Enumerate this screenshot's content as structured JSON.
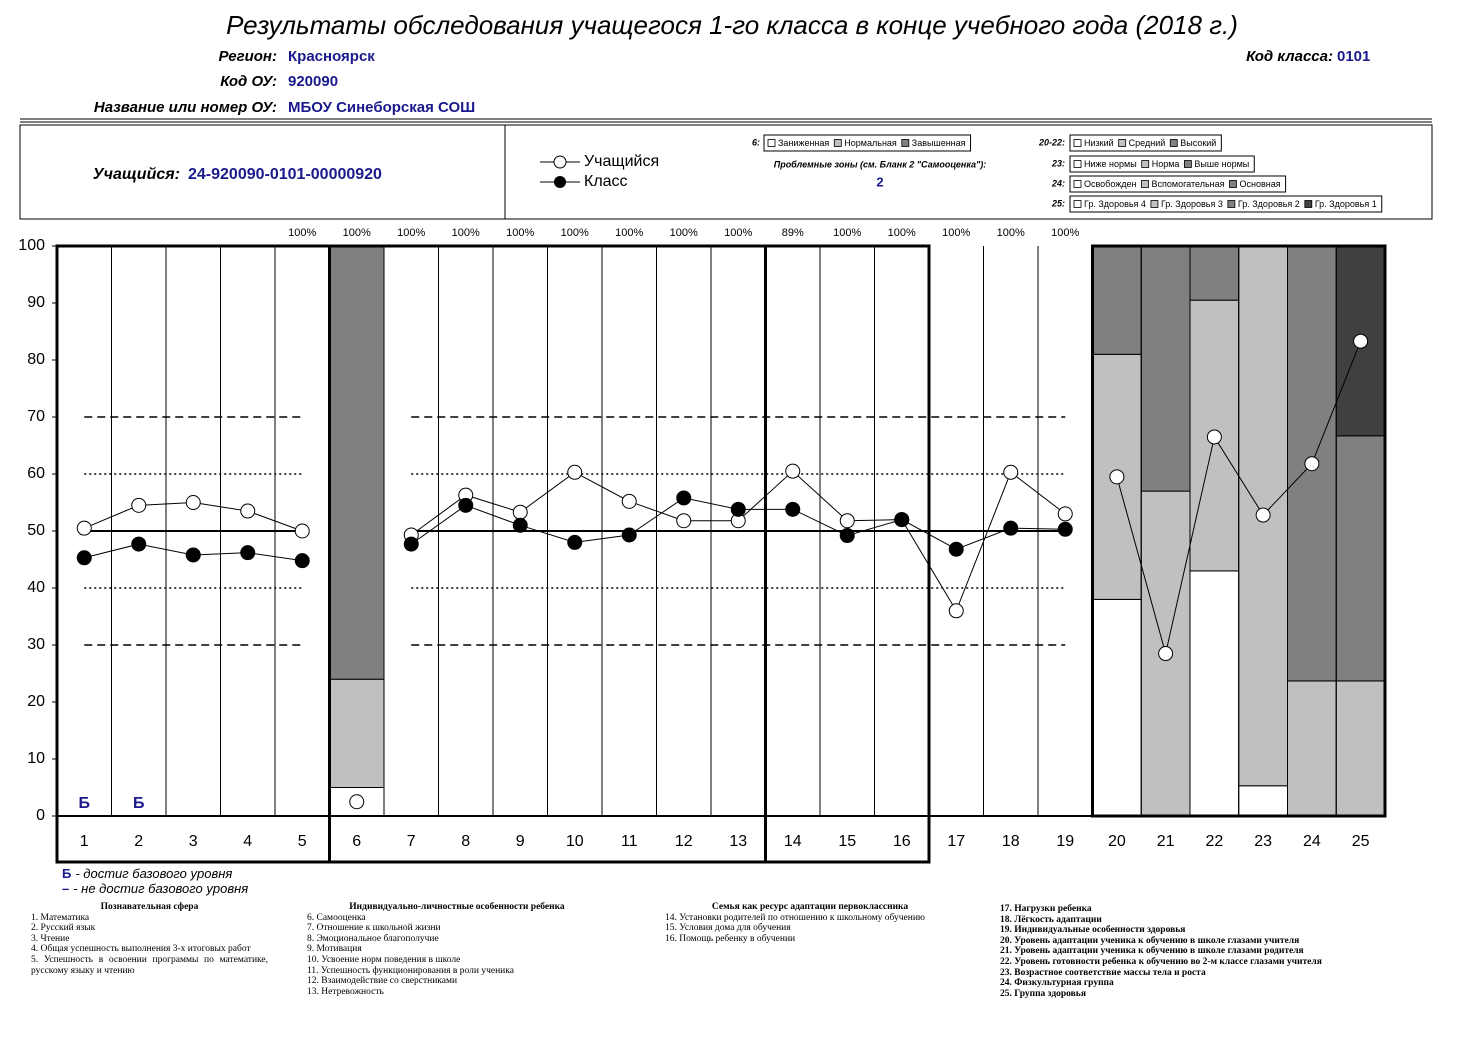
{
  "header": {
    "title": "Результаты обследования учащегося 1-го класса в конце учебного года (2018 г.)",
    "region_label": "Регион:",
    "region": "Красноярск",
    "school_code_label": "Код ОУ:",
    "school_code": "920090",
    "school_name_label": "Название или номер ОУ:",
    "school_name": "МБОУ Синеборская СОШ",
    "class_code_label": "Код класса:",
    "class_code": "0101"
  },
  "student": {
    "label": "Учащийся:",
    "id": "24-920090-0101-00000920"
  },
  "problem_zones": {
    "label": "Проблемные зоны (см. Бланк 2 \"Самооценка\"):",
    "value": 2
  },
  "chart_data": {
    "type": "line",
    "categories": [
      "1",
      "2",
      "3",
      "4",
      "5",
      "6",
      "7",
      "8",
      "9",
      "10",
      "11",
      "12",
      "13",
      "14",
      "15",
      "16",
      "17",
      "18",
      "19",
      "20",
      "21",
      "22",
      "23",
      "24",
      "25"
    ],
    "series": [
      {
        "name": "Учащийся",
        "color": "#ffffff",
        "values": [
          50.5,
          54.5,
          55,
          53.5,
          50,
          2.5,
          49.3,
          56.3,
          53.3,
          60.3,
          55.2,
          51.8,
          51.8,
          60.5,
          51.8,
          52,
          36,
          60.3,
          53,
          59.5,
          28.5,
          66.5,
          52.8,
          61.8,
          83.3
        ]
      },
      {
        "name": "Класс",
        "color": "#000000",
        "values": [
          45.3,
          47.7,
          45.8,
          46.2,
          44.8,
          null,
          47.7,
          54.5,
          51,
          48,
          49.3,
          55.8,
          53.8,
          53.8,
          49.2,
          52,
          46.8,
          50.5,
          50.3,
          null,
          null,
          null,
          null,
          null,
          null
        ]
      }
    ],
    "ylim": [
      0,
      100
    ],
    "yticks": [
      0,
      10,
      20,
      30,
      40,
      50,
      60,
      70,
      80,
      90,
      100
    ],
    "reference_lines": [
      {
        "value": 50,
        "style": "solid"
      },
      {
        "value": 40,
        "style": "dotted"
      },
      {
        "value": 60,
        "style": "dotted"
      },
      {
        "value": 30,
        "style": "dashed"
      },
      {
        "value": 70,
        "style": "dashed"
      }
    ],
    "completion": {
      "values": [
        null,
        null,
        null,
        null,
        100,
        100,
        100,
        100,
        100,
        100,
        100,
        100,
        100,
        89,
        100,
        100,
        100,
        100,
        100,
        null,
        null,
        null,
        null,
        null,
        null
      ],
      "value_labels": [
        null,
        null,
        null,
        null,
        "100%",
        "100%",
        "100%",
        "100%",
        "100%",
        "100%",
        "100%",
        "100%",
        "100%",
        "89%",
        "100%",
        "100%",
        "100%",
        "100%",
        "100%",
        null,
        null,
        null,
        null,
        null,
        null
      ]
    },
    "base_level": [
      "Б",
      "Б",
      null,
      null,
      null,
      null,
      null,
      null,
      null,
      null,
      null,
      null,
      null,
      null,
      null,
      null,
      null,
      null,
      null,
      null,
      null,
      null,
      null,
      null,
      null
    ],
    "stacks": [
      null,
      null,
      null,
      null,
      null,
      [
        5,
        19,
        76
      ],
      null,
      null,
      null,
      null,
      null,
      null,
      null,
      null,
      null,
      null,
      null,
      null,
      null,
      [
        38,
        43,
        19
      ],
      [
        0,
        57,
        43
      ],
      [
        43,
        47.5,
        9.5
      ],
      [
        5.3,
        94.7,
        0
      ],
      [
        0,
        23.7,
        76.3
      ],
      [
        0,
        23.7,
        43,
        33.3
      ]
    ],
    "stack_legends": [
      {
        "key": "6:",
        "items": [
          "Заниженная",
          "Нормальная",
          "Завышенная"
        ],
        "colors": [
          "#ffffff",
          "#c0c0c0",
          "#808080"
        ]
      },
      {
        "key": "20-22:",
        "items": [
          "Низкий",
          "Средний",
          "Высокий"
        ],
        "colors": [
          "#ffffff",
          "#c0c0c0",
          "#808080"
        ]
      },
      {
        "key": "23:",
        "items": [
          "Ниже нормы",
          "Норма",
          "Выше нормы"
        ],
        "colors": [
          "#ffffff",
          "#c0c0c0",
          "#808080"
        ]
      },
      {
        "key": "24:",
        "items": [
          "Освобожден",
          "Вспомогательная",
          "Основная"
        ],
        "colors": [
          "#ffffff",
          "#c0c0c0",
          "#808080"
        ]
      },
      {
        "key": "25:",
        "items": [
          "Гр. Здоровья 4",
          "Гр. Здоровья 3",
          "Гр. Здоровья 2",
          "Гр. Здоровья 1"
        ],
        "colors": [
          "#ffffff",
          "#c0c0c0",
          "#808080",
          "#404040"
        ]
      }
    ]
  },
  "notes": {
    "base_legend": [
      {
        "symbol": "Б",
        "text": "- достиг базового уровня"
      },
      {
        "symbol": "–",
        "text": "- не достиг базового уровня"
      }
    ],
    "sections": [
      {
        "title": "Познавательная сфера",
        "items": [
          "1. Математика",
          "2. Русский язык",
          "3. Чтение",
          "4. Общая успешность выполнения 3-х итоговых работ",
          "5. Успешность в освоении программы по математике, русскому языку и чтению"
        ]
      },
      {
        "title": "Индивидуально-личностные особенности ребенка",
        "items": [
          "6. Самооценка",
          "7. Отношение к школьной жизни",
          "8. Эмоциональное благополучие",
          "9. Мотивация",
          "10. Усвоение норм поведения в школе",
          "11. Успешность функционирования в роли ученика",
          "12. Взаимодействие со сверстниками",
          "13. Нетревожность"
        ]
      },
      {
        "title": "Семья как ресурс адаптации первоклассника",
        "items": [
          "14. Установки родителей по отношению к школьному обучению",
          "15. Условия дома для обучения",
          "16. Помощь ребенку в обучении"
        ]
      },
      {
        "items": [
          "17. Нагрузки ребенка",
          "18. Лёгкость адаптации",
          "19. Индивидуальные особенности здоровья",
          "20. Уровень адаптации ученика к обучению в школе глазами учителя",
          "21. Уровень адаптации ученика к обучению в школе глазами родителя",
          "22. Уровень готовности ребенка к обучению во 2-м классе глазами учителя",
          "23. Возрастное соответствие  массы тела и роста",
          "24. Физкультурная группа",
          "25. Группа здоровья"
        ]
      }
    ]
  }
}
